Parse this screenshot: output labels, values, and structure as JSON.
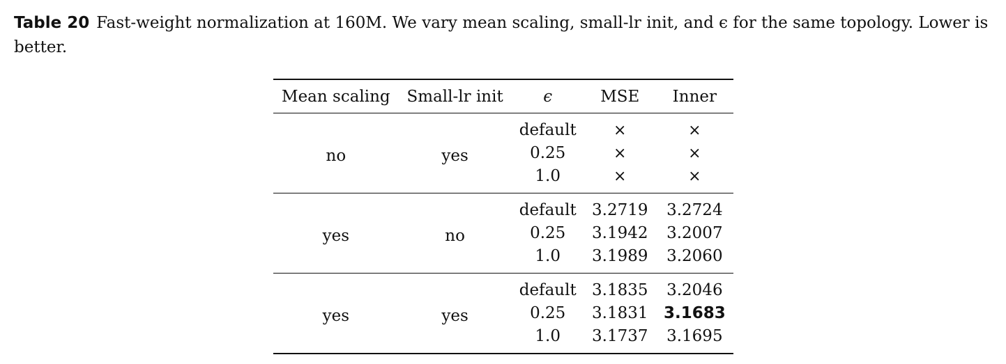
{
  "caption": {
    "label": "Table 20",
    "text": "Fast-weight normalization at 160M. We vary mean scaling, small-lr init, and ϵ for the same topology. Lower is better."
  },
  "table": {
    "headers": [
      "Mean scaling",
      "Small-lr init",
      "ϵ",
      "MSE",
      "Inner"
    ],
    "groups": [
      {
        "mean_scaling": "no",
        "small_lr_init": "yes",
        "rows": [
          {
            "eps": "default",
            "mse": "×",
            "inner": "×"
          },
          {
            "eps": "0.25",
            "mse": "×",
            "inner": "×"
          },
          {
            "eps": "1.0",
            "mse": "×",
            "inner": "×"
          }
        ]
      },
      {
        "mean_scaling": "yes",
        "small_lr_init": "no",
        "rows": [
          {
            "eps": "default",
            "mse": "3.2719",
            "inner": "3.2724"
          },
          {
            "eps": "0.25",
            "mse": "3.1942",
            "inner": "3.2007"
          },
          {
            "eps": "1.0",
            "mse": "3.1989",
            "inner": "3.2060"
          }
        ]
      },
      {
        "mean_scaling": "yes",
        "small_lr_init": "yes",
        "rows": [
          {
            "eps": "default",
            "mse": "3.1835",
            "inner": "3.2046"
          },
          {
            "eps": "0.25",
            "mse": "3.1831",
            "inner": "3.1683"
          },
          {
            "eps": "1.0",
            "mse": "3.1737",
            "inner": "3.1695"
          }
        ]
      }
    ]
  }
}
